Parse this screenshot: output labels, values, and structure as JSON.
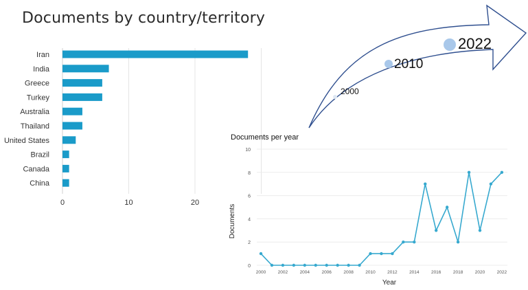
{
  "chart_data": [
    {
      "type": "bar",
      "orientation": "horizontal",
      "title": "Documents by country/territory",
      "categories": [
        "Iran",
        "India",
        "Greece",
        "Turkey",
        "Australia",
        "Thailand",
        "United States",
        "Brazil",
        "Canada",
        "China"
      ],
      "values": [
        28,
        7,
        6,
        6,
        3,
        3,
        2,
        1,
        1,
        1
      ],
      "xlim": [
        0,
        30
      ],
      "x_ticks": [
        "0",
        "10",
        "20"
      ],
      "grid": true,
      "bar_color": "#1a9bc9"
    },
    {
      "type": "line",
      "title": "Documents per year",
      "xlabel": "Year",
      "ylabel": "Documents",
      "x": [
        2000,
        2001,
        2002,
        2003,
        2004,
        2005,
        2006,
        2007,
        2008,
        2009,
        2010,
        2011,
        2012,
        2013,
        2014,
        2015,
        2016,
        2017,
        2018,
        2019,
        2020,
        2021,
        2022
      ],
      "values": [
        1,
        0,
        0,
        0,
        0,
        0,
        0,
        0,
        0,
        0,
        1,
        1,
        1,
        2,
        2,
        7,
        3,
        5,
        2,
        8,
        3,
        7,
        8
      ],
      "x_ticks": [
        "2000",
        "2002",
        "2004",
        "2006",
        "2008",
        "2010",
        "2012",
        "2014",
        "2016",
        "2018",
        "2020",
        "2022"
      ],
      "y_ticks": [
        "0",
        "2",
        "4",
        "6",
        "8",
        "10"
      ],
      "ylim": [
        0,
        10
      ],
      "grid": true,
      "line_color": "#37a9cf"
    }
  ],
  "arrow": {
    "labels": [
      "2000",
      "2010",
      "2022"
    ],
    "stroke_color": "#2f4f8f",
    "dot_color": "#a9c8ea"
  }
}
